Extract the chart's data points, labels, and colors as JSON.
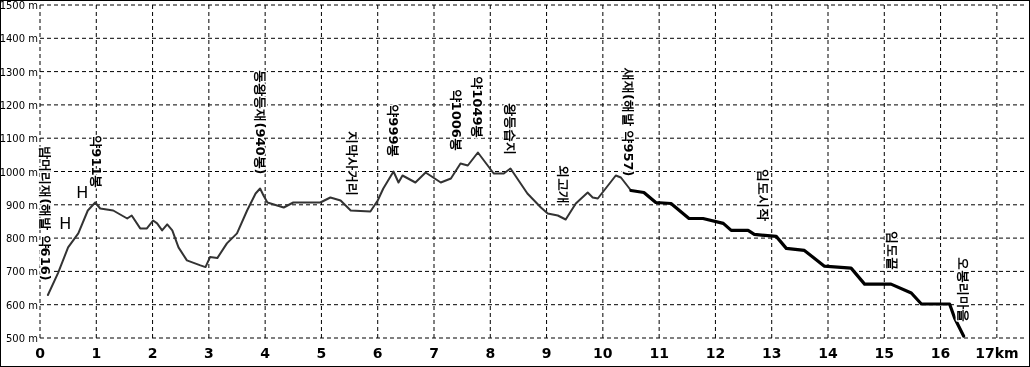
{
  "chart_data": {
    "type": "line",
    "xlim": [
      0,
      17.5
    ],
    "ylim": [
      500,
      1500
    ],
    "grid": true,
    "xticks": [
      0,
      1,
      2,
      3,
      4,
      5,
      6,
      7,
      8,
      9,
      10,
      11,
      12,
      13,
      14,
      15,
      16,
      {
        "value": 17,
        "label": "17km"
      }
    ],
    "yticks": [
      {
        "value": 500,
        "label": "500 m"
      },
      {
        "value": 600,
        "label": "600 m"
      },
      {
        "value": 700,
        "label": "700 m"
      },
      {
        "value": 800,
        "label": "800 m"
      },
      {
        "value": 900,
        "label": "900 m"
      },
      {
        "value": 1000,
        "label": "1000 m"
      },
      {
        "value": 1100,
        "label": "1100 m"
      },
      {
        "value": 1200,
        "label": "1200 m"
      },
      {
        "value": 1300,
        "label": "1300 m"
      },
      {
        "value": 1400,
        "label": "1400 m"
      },
      {
        "value": 1500,
        "label": "1500 m"
      }
    ],
    "series": [
      {
        "color": "#333333",
        "x": [
          0.14,
          0.32,
          0.5,
          0.68,
          0.85,
          0.98,
          1.07,
          1.3,
          1.55,
          1.63,
          1.78,
          1.9,
          2.01,
          2.08,
          2.17,
          2.26,
          2.35,
          2.46,
          2.61,
          2.85,
          2.94,
          3.02,
          3.15,
          3.32,
          3.5,
          3.68,
          3.83,
          3.91,
          3.97,
          4.04,
          4.33,
          4.5,
          4.8,
          4.98,
          5.16,
          5.34,
          5.52,
          5.87,
          6.0,
          6.1,
          6.28,
          6.37,
          6.44,
          6.67,
          6.85,
          7.12,
          7.3,
          7.47,
          7.6,
          7.78,
          8.06,
          8.24,
          8.36,
          8.66,
          8.9,
          9.02,
          9.2,
          9.34,
          9.52,
          9.73,
          9.82,
          9.91,
          10.23,
          10.32,
          10.5
        ],
        "values": [
          629,
          695,
          772,
          814,
          883,
          907,
          889,
          883,
          859,
          868,
          829,
          829,
          853,
          844,
          823,
          841,
          823,
          772,
          733,
          718,
          713,
          743,
          740,
          784,
          814,
          883,
          934,
          949,
          928,
          907,
          892,
          907,
          907,
          907,
          922,
          913,
          883,
          880,
          913,
          949,
          1000,
          967,
          988,
          967,
          997,
          967,
          979,
          1024,
          1018,
          1057,
          994,
          994,
          1009,
          934,
          892,
          874,
          868,
          856,
          904,
          937,
          922,
          919,
          988,
          982,
          943
        ]
      },
      {
        "color": "#000000",
        "x": [
          10.5,
          10.73,
          10.94,
          11.21,
          11.53,
          11.78,
          12.14,
          12.28,
          12.58,
          12.69,
          13.08,
          13.26,
          13.58,
          13.93,
          14.41,
          14.65,
          15.12,
          15.48,
          15.66,
          16.16,
          16.25,
          16.41
        ],
        "values": [
          943,
          937,
          907,
          904,
          859,
          859,
          844,
          823,
          823,
          811,
          805,
          769,
          763,
          716,
          710,
          662,
          662,
          635,
          602,
          602,
          560,
          506
        ]
      }
    ],
    "annotations": [
      {
        "text": "밤머리재(해발 약616)",
        "x": 0.1,
        "y": 630
      },
      {
        "text": "H",
        "x": 0.68,
        "y": 814
      },
      {
        "text": "H",
        "x": 0.98,
        "y": 907
      },
      {
        "text": "약911봉",
        "x": 1.0,
        "y": 907
      },
      {
        "text": "동왕등재(940봉)",
        "x": 3.91,
        "y": 949
      },
      {
        "text": "지막사거리",
        "x": 5.55,
        "y": 886
      },
      {
        "text": "약999봉",
        "x": 6.28,
        "y": 1000
      },
      {
        "text": "약1006봉",
        "x": 7.4,
        "y": 1020
      },
      {
        "text": "약1049봉",
        "x": 7.78,
        "y": 1057
      },
      {
        "text": "왕등습지",
        "x": 8.36,
        "y": 1009
      },
      {
        "text": "외고개",
        "x": 9.3,
        "y": 860
      },
      {
        "text": "새재(해발 약957)",
        "x": 10.45,
        "y": 943
      },
      {
        "text": "임도시작",
        "x": 12.85,
        "y": 810
      },
      {
        "text": "임도끝",
        "x": 15.15,
        "y": 662
      },
      {
        "text": "오봉리마을",
        "x": 16.41,
        "y": 506
      }
    ]
  }
}
